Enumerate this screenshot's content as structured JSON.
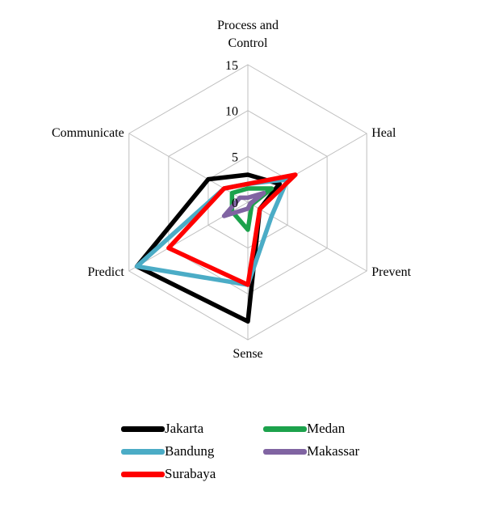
{
  "chart_data": {
    "type": "radar",
    "axes": [
      "Process and Control",
      "Heal",
      "Prevent",
      "Sense",
      "Predict",
      "Communicate"
    ],
    "axis_label_lines": [
      [
        "Process and",
        "Control"
      ],
      [
        "Heal"
      ],
      [
        "Prevent"
      ],
      [
        "Sense"
      ],
      [
        "Predict"
      ],
      [
        "Communicate"
      ]
    ],
    "rlim": [
      0,
      15
    ],
    "ticks": [
      "0",
      "5",
      "10",
      "15"
    ],
    "tick_values": [
      0,
      5,
      10,
      15
    ],
    "grid": true,
    "legend_position": "bottom",
    "series": [
      {
        "name": "Jakarta",
        "color": "#000000",
        "values": [
          3,
          4,
          1.5,
          13,
          14,
          5
        ]
      },
      {
        "name": "Medan",
        "color": "#1ca24c",
        "values": [
          1.5,
          3,
          0.5,
          3,
          2,
          2
        ]
      },
      {
        "name": "Bandung",
        "color": "#4bacc6",
        "values": [
          2,
          5,
          3,
          9,
          14,
          3
        ]
      },
      {
        "name": "Makassar",
        "color": "#8064a2",
        "values": [
          0.5,
          2,
          0.3,
          0.7,
          3,
          1
        ]
      },
      {
        "name": "Surabaya",
        "color": "#ff0000",
        "values": [
          2,
          6,
          1.5,
          9,
          10,
          3
        ]
      }
    ]
  }
}
